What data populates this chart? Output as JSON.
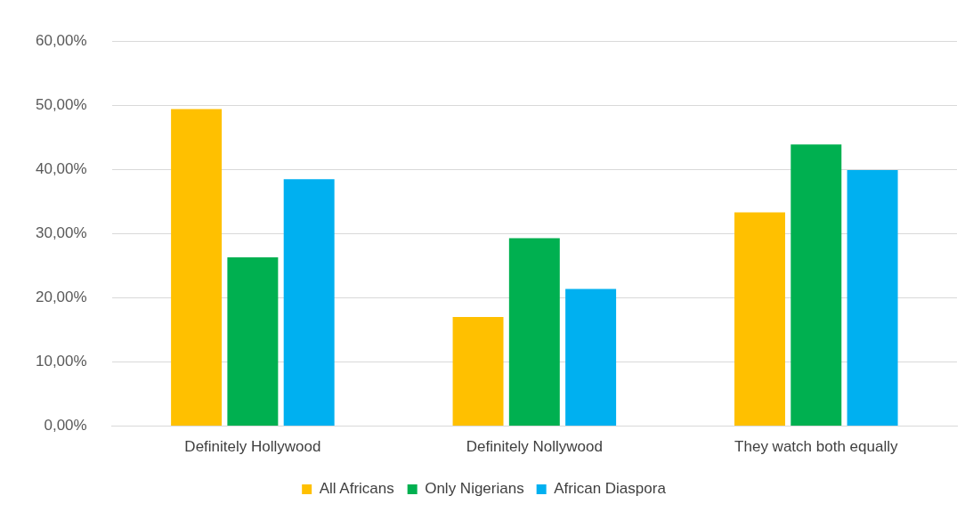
{
  "chart_data": {
    "type": "bar",
    "categories": [
      "Definitely Hollywood",
      "Definitely Nollywood",
      "They watch both equally"
    ],
    "series": [
      {
        "name": "All Africans",
        "color": "#ffc000",
        "values": [
          49.4,
          17.0,
          33.3
        ]
      },
      {
        "name": "Only Nigerians",
        "color": "#00b050",
        "values": [
          26.3,
          29.3,
          43.9
        ]
      },
      {
        "name": "African Diaspora",
        "color": "#00b0f0",
        "values": [
          38.5,
          21.4,
          39.9
        ]
      }
    ],
    "ylim": [
      0,
      60
    ],
    "yticks": [
      {
        "value": 0,
        "label": "0,00%"
      },
      {
        "value": 10,
        "label": "10,00%"
      },
      {
        "value": 20,
        "label": "20,00%"
      },
      {
        "value": 30,
        "label": "30,00%"
      },
      {
        "value": 40,
        "label": "40,00%"
      },
      {
        "value": 50,
        "label": "50,00%"
      },
      {
        "value": 60,
        "label": "60,00%"
      }
    ],
    "grid": "y",
    "legend": "bottom"
  }
}
